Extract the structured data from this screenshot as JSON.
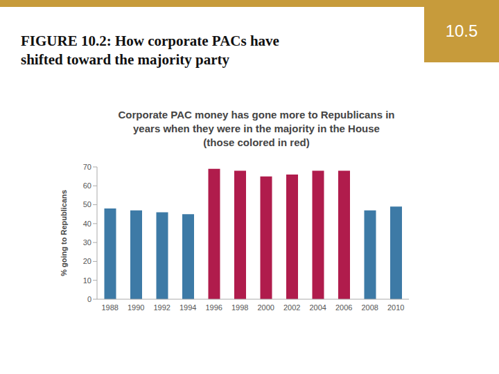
{
  "slide": {
    "title": "FIGURE 10.2: How corporate PACs have\nshifted toward the majority party",
    "section": "10.5"
  },
  "chart_data": {
    "type": "bar",
    "title": "Corporate PAC money has gone more to Republicans in\nyears when they were in the majority in the House\n(those colored in red)",
    "y_label": "% going to Republicans",
    "categories": [
      "1988",
      "1990",
      "1992",
      "1994",
      "1996",
      "1998",
      "2000",
      "2002",
      "2004",
      "2006",
      "2008",
      "2010"
    ],
    "values": [
      48,
      47,
      46,
      45,
      69,
      68,
      65,
      66,
      68,
      68,
      47,
      49
    ],
    "colors": [
      "#3d7aa6",
      "#3d7aa6",
      "#3d7aa6",
      "#3d7aa6",
      "#b01c4c",
      "#b01c4c",
      "#b01c4c",
      "#b01c4c",
      "#b01c4c",
      "#b01c4c",
      "#3d7aa6",
      "#3d7aa6"
    ],
    "ylim": [
      0,
      70
    ],
    "yticks": [
      0,
      10,
      20,
      30,
      40,
      50,
      60,
      70
    ],
    "grid": false
  }
}
